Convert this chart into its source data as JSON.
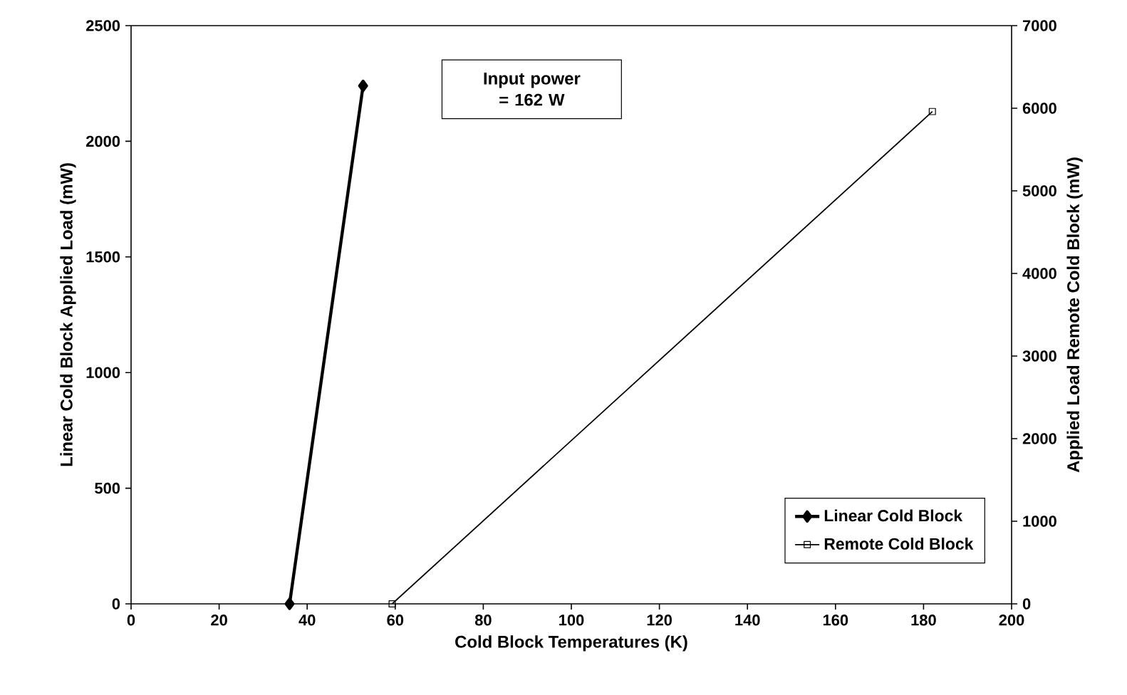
{
  "chart_data": {
    "type": "line",
    "xlabel": "Cold Block Temperatures (K)",
    "ylabel": "Linear Cold Block Applied Load (mW)",
    "y2label": "Applied Load Remote Cold Block (mW)",
    "xlim": [
      0,
      200
    ],
    "xticks": [
      0,
      20,
      40,
      60,
      80,
      100,
      120,
      140,
      160,
      180,
      200
    ],
    "ylim": [
      0,
      2500
    ],
    "yticks": [
      0,
      500,
      1000,
      1500,
      2000,
      2500
    ],
    "y2lim": [
      0,
      7000
    ],
    "y2ticks": [
      0,
      1000,
      2000,
      3000,
      4000,
      5000,
      6000,
      7000
    ],
    "series": [
      {
        "name": "Linear Cold Block",
        "color": "#000000",
        "marker": "diamond",
        "x": [
          36.0,
          52.7
        ],
        "values": [
          0,
          2240
        ]
      },
      {
        "name": "Remote Cold Block",
        "color": "#000000",
        "marker": "square",
        "axis": "y2",
        "x": [
          59.3,
          182
        ],
        "values": [
          0,
          5960
        ]
      }
    ],
    "annotations": [
      "Input power = 162 W"
    ],
    "legend": "bottom right",
    "grid": false
  }
}
